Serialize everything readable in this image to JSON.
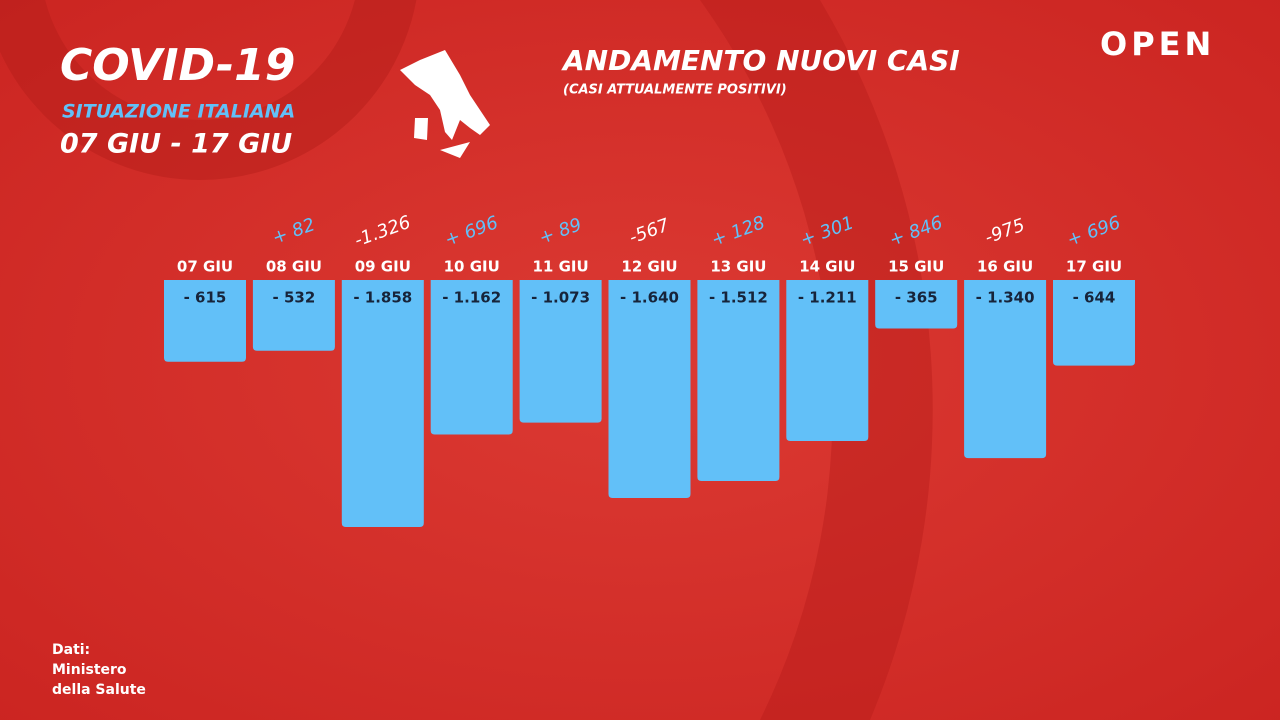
{
  "header": {
    "title": "COVID-19",
    "subtitle": "SITUAZIONE ITALIANA",
    "period": "07 GIU - 17 GIU",
    "logo": "OPEN"
  },
  "source": {
    "lines": [
      "Dati:",
      "Ministero",
      "della Salute"
    ]
  },
  "chart_data": {
    "type": "bar",
    "title": "ANDAMENTO NUOVI CASI",
    "subtitle": "(CASI ATTUALMENTE POSITIVI)",
    "categories": [
      "07 GIU",
      "08 GIU",
      "09 GIU",
      "10 GIU",
      "11 GIU",
      "12 GIU",
      "13 GIU",
      "14 GIU",
      "15 GIU",
      "16 GIU",
      "17 GIU"
    ],
    "values": [
      -615,
      -532,
      -1858,
      -1162,
      -1073,
      -1640,
      -1512,
      -1211,
      -365,
      -1340,
      -644
    ],
    "value_labels": [
      "- 615",
      "- 532",
      "- 1.858",
      "- 1.162",
      "- 1.073",
      "- 1.640",
      "- 1.512",
      "- 1.211",
      "- 365",
      "- 1.340",
      "- 644"
    ],
    "color": "#62c0f8",
    "change_values": [
      null,
      82,
      -1326,
      696,
      89,
      -567,
      128,
      301,
      846,
      -975,
      696
    ],
    "change_labels": [
      null,
      "+ 82",
      "-1.326",
      "+ 696",
      "+ 89",
      "-567",
      "+ 128",
      "+ 301",
      "+ 846",
      "-975",
      "+ 696"
    ],
    "positive_color": "#62c0f8",
    "negative_color": "#ffffff"
  }
}
